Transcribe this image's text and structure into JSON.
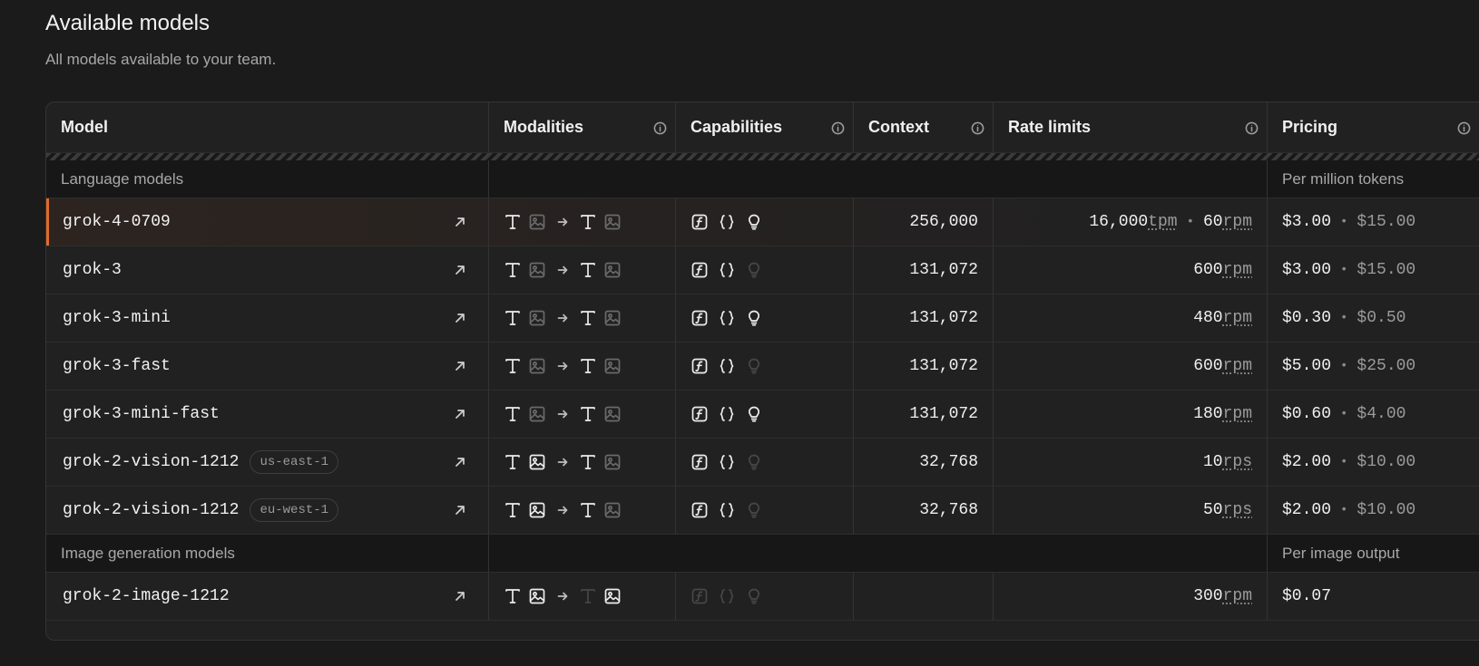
{
  "page": {
    "title": "Available models",
    "subtitle": "All models available to your team."
  },
  "columns": [
    "Model",
    "Modalities",
    "Capabilities",
    "Context",
    "Rate limits",
    "Pricing"
  ],
  "sections": [
    {
      "label": "Language models",
      "pricing_note": "Per million tokens",
      "rows": [
        {
          "name": "grok-4-0709",
          "region": "",
          "selected": true,
          "modalities": {
            "in_text": true,
            "in_image": false,
            "out_text": true,
            "out_image": false
          },
          "capabilities": {
            "function": true,
            "json": true,
            "reasoning": true
          },
          "context": "256,000",
          "rate": [
            {
              "value": "16,000",
              "unit": "tpm"
            },
            {
              "value": "60",
              "unit": "rpm"
            }
          ],
          "price_in": "$3.00",
          "price_out": "$15.00"
        },
        {
          "name": "grok-3",
          "region": "",
          "selected": false,
          "modalities": {
            "in_text": true,
            "in_image": false,
            "out_text": true,
            "out_image": false
          },
          "capabilities": {
            "function": true,
            "json": true,
            "reasoning": false
          },
          "context": "131,072",
          "rate": [
            {
              "value": "600",
              "unit": "rpm"
            }
          ],
          "price_in": "$3.00",
          "price_out": "$15.00"
        },
        {
          "name": "grok-3-mini",
          "region": "",
          "selected": false,
          "modalities": {
            "in_text": true,
            "in_image": false,
            "out_text": true,
            "out_image": false
          },
          "capabilities": {
            "function": true,
            "json": true,
            "reasoning": true
          },
          "context": "131,072",
          "rate": [
            {
              "value": "480",
              "unit": "rpm"
            }
          ],
          "price_in": "$0.30",
          "price_out": "$0.50"
        },
        {
          "name": "grok-3-fast",
          "region": "",
          "selected": false,
          "modalities": {
            "in_text": true,
            "in_image": false,
            "out_text": true,
            "out_image": false
          },
          "capabilities": {
            "function": true,
            "json": true,
            "reasoning": false
          },
          "context": "131,072",
          "rate": [
            {
              "value": "600",
              "unit": "rpm"
            }
          ],
          "price_in": "$5.00",
          "price_out": "$25.00"
        },
        {
          "name": "grok-3-mini-fast",
          "region": "",
          "selected": false,
          "modalities": {
            "in_text": true,
            "in_image": false,
            "out_text": true,
            "out_image": false
          },
          "capabilities": {
            "function": true,
            "json": true,
            "reasoning": true
          },
          "context": "131,072",
          "rate": [
            {
              "value": "180",
              "unit": "rpm"
            }
          ],
          "price_in": "$0.60",
          "price_out": "$4.00"
        },
        {
          "name": "grok-2-vision-1212",
          "region": "us-east-1",
          "selected": false,
          "modalities": {
            "in_text": true,
            "in_image": true,
            "out_text": true,
            "out_image": false
          },
          "capabilities": {
            "function": true,
            "json": true,
            "reasoning": false
          },
          "context": "32,768",
          "rate": [
            {
              "value": "10",
              "unit": "rps"
            }
          ],
          "price_in": "$2.00",
          "price_out": "$10.00"
        },
        {
          "name": "grok-2-vision-1212",
          "region": "eu-west-1",
          "selected": false,
          "modalities": {
            "in_text": true,
            "in_image": true,
            "out_text": true,
            "out_image": false
          },
          "capabilities": {
            "function": true,
            "json": true,
            "reasoning": false
          },
          "context": "32,768",
          "rate": [
            {
              "value": "50",
              "unit": "rps"
            }
          ],
          "price_in": "$2.00",
          "price_out": "$10.00"
        }
      ]
    },
    {
      "label": "Image generation models",
      "pricing_note": "Per image output",
      "rows": [
        {
          "name": "grok-2-image-1212",
          "region": "",
          "selected": false,
          "modalities": {
            "in_text": true,
            "in_image": true,
            "out_text": false,
            "out_image": true
          },
          "capabilities": {
            "function": false,
            "json": false,
            "reasoning": false
          },
          "context": "",
          "rate": [
            {
              "value": "300",
              "unit": "rpm"
            }
          ],
          "price_in": "$0.07",
          "price_out": ""
        }
      ]
    }
  ],
  "colors": {
    "accent": "#e06b2a",
    "icon_on": "#ededed",
    "icon_off": "#6a6a6a",
    "icon_faint": "#474747"
  },
  "icons": {
    "header_info": "info-icon",
    "open": "arrow-up-right-icon",
    "text": "text-icon",
    "image": "image-icon",
    "to": "arrow-right-icon",
    "function": "function-icon",
    "json": "braces-icon",
    "reasoning": "lightbulb-icon"
  }
}
